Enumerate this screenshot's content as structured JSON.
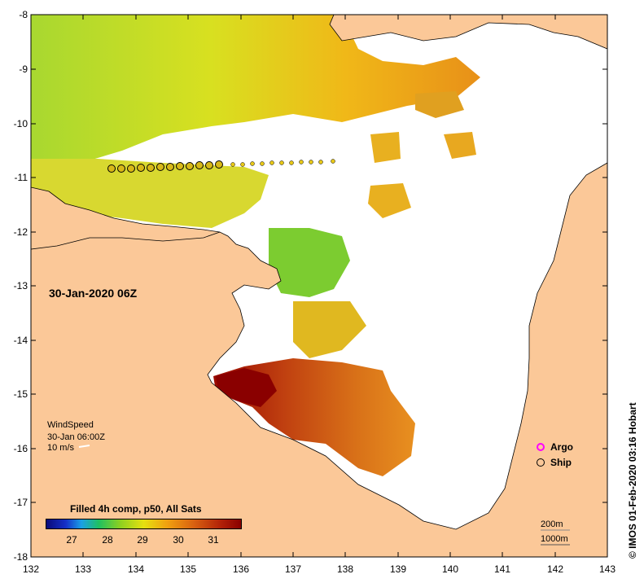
{
  "map": {
    "timestamp": "30-Jan-2020 06Z",
    "y_axis_labels": [
      "-8",
      "-9",
      "-10",
      "-11",
      "-12",
      "-13",
      "-14",
      "-15",
      "-16",
      "-17",
      "-18"
    ],
    "x_axis_labels": [
      "132",
      "133",
      "134",
      "135",
      "136",
      "137",
      "138",
      "139",
      "140",
      "141",
      "142",
      "143"
    ],
    "wind": {
      "title": "WindSpeed",
      "time": "30-Jan 06:00Z",
      "scale": "10 m/s"
    },
    "colorbar": {
      "title": "Filled 4h comp, p50, All Sats",
      "ticks": [
        "27",
        "28",
        "29",
        "30",
        "31"
      ]
    },
    "legend": {
      "argo": "Argo",
      "ship": "Ship"
    },
    "scale_bars": {
      "contour": "200m",
      "depth": "1000m"
    },
    "copyright": "© IMOS 01-Feb-2020 03:16 Hobart",
    "colors": {
      "land": "#fbc898",
      "no_data": "#ffffff",
      "argo": "#ff00ff"
    }
  }
}
